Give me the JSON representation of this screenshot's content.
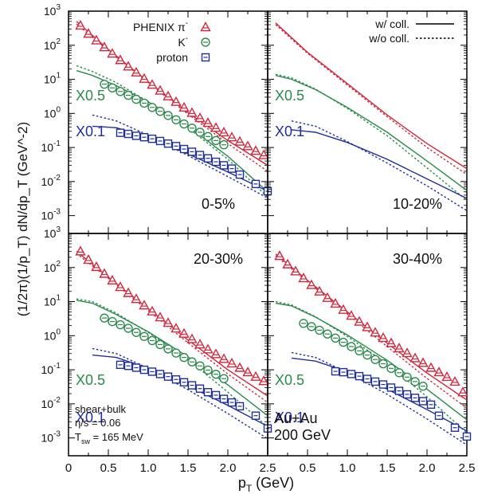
{
  "chart_data": {
    "type": "scatter",
    "title": "",
    "xlabel": "p",
    "xlabel_sub": "T",
    "xlabel_unit": " (GeV)",
    "ylabel": "(1/2π)(1/p_T) dN/dp_T (GeV^-2)",
    "xlim": [
      0,
      2.5
    ],
    "ylim": [
      0.0003,
      1000
    ],
    "log_y": true,
    "xticks": [
      "0",
      "0.5",
      "1.0",
      "1.5",
      "2.0",
      "2.5"
    ],
    "yticks": [
      {
        "value": 1000,
        "mantissa": "10",
        "exp": "3"
      },
      {
        "value": 100,
        "mantissa": "10",
        "exp": "2"
      },
      {
        "value": 10,
        "mantissa": "10",
        "exp": "1"
      },
      {
        "value": 1,
        "mantissa": "10",
        "exp": "0"
      },
      {
        "value": 0.1,
        "mantissa": "10",
        "exp": "-1"
      },
      {
        "value": 0.01,
        "mantissa": "10",
        "exp": "-2"
      },
      {
        "value": 0.001,
        "mantissa": "10",
        "exp": "-3"
      }
    ],
    "legend_points": [
      {
        "label": "PHENIX  π",
        "sup": "-",
        "species": "pion",
        "color": "#d0283c"
      },
      {
        "label": "K",
        "sup": "-",
        "species": "kaon",
        "color": "#2a8a4a"
      },
      {
        "label": "proton",
        "sup": "",
        "species": "proton",
        "color": "#1f2f9a"
      }
    ],
    "legend_lines": [
      {
        "label": "w/ coll.",
        "style": "solid"
      },
      {
        "label": "w/o coll.",
        "style": "dotted"
      }
    ],
    "scale_labels": {
      "kaon": "X0.5",
      "proton": "X0.1"
    },
    "annotations": {
      "params": [
        "shear+bulk",
        "η/s = 0.06"
      ],
      "tsw": {
        "main": "T",
        "sub": "sw",
        "rest": " = 165 MeV"
      },
      "system": [
        "Au+Au",
        "200 GeV"
      ]
    },
    "panels": [
      {
        "centrality": "0-5%",
        "has_data": true,
        "data": {
          "pion": {
            "x": [
              0.15,
              0.25,
              0.35,
              0.45,
              0.55,
              0.65,
              0.75,
              0.85,
              0.95,
              1.05,
              1.15,
              1.25,
              1.35,
              1.45,
              1.55,
              1.65,
              1.75,
              1.85,
              1.95,
              2.05,
              2.15,
              2.25,
              2.35,
              2.45
            ],
            "y": [
              380,
              220,
              140,
              88,
              57,
              37,
              24,
              16,
              10.5,
              7,
              4.7,
              3.2,
              2.2,
              1.5,
              1.05,
              0.74,
              0.53,
              0.38,
              0.28,
              0.2,
              0.15,
              0.11,
              0.08,
              0.06
            ]
          },
          "kaon": {
            "x": [
              0.45,
              0.55,
              0.65,
              0.75,
              0.85,
              0.95,
              1.05,
              1.15,
              1.25,
              1.35,
              1.45,
              1.55,
              1.65,
              1.75,
              1.85,
              1.95
            ],
            "y": [
              7.2,
              5.6,
              4.4,
              3.4,
              2.6,
              2.0,
              1.5,
              1.15,
              0.87,
              0.65,
              0.49,
              0.37,
              0.28,
              0.21,
              0.16,
              0.12
            ]
          },
          "proton": {
            "x": [
              0.65,
              0.75,
              0.85,
              0.95,
              1.05,
              1.15,
              1.25,
              1.35,
              1.45,
              1.55,
              1.65,
              1.75,
              1.85,
              1.95,
              2.05,
              2.15,
              2.35,
              2.5
            ],
            "y": [
              0.27,
              0.25,
              0.22,
              0.2,
              0.18,
              0.155,
              0.13,
              0.11,
              0.09,
              0.075,
              0.06,
              0.048,
              0.038,
              0.03,
              0.024,
              0.016,
              0.0085,
              0.0052
            ]
          }
        },
        "curves": {
          "pion": {
            "x": [
              0.1,
              0.5,
              1.0,
              1.5,
              2.0,
              2.5
            ],
            "solid": [
              500,
              75,
              8.5,
              1.05,
              0.16,
              0.03
            ],
            "dotted": [
              420,
              70,
              8,
              0.95,
              0.13,
              0.02
            ]
          },
          "kaon": {
            "x": [
              0.1,
              0.3,
              0.6,
              1.0,
              1.5,
              2.0,
              2.5
            ],
            "solid": [
              18,
              13,
              6.5,
              2.2,
              0.42,
              0.055,
              0.005
            ],
            "dotted": [
              25,
              17,
              8,
              2.2,
              0.38,
              0.045,
              0.0035
            ]
          },
          "proton": {
            "x": [
              0.3,
              0.6,
              1.0,
              1.5,
              2.0,
              2.5
            ],
            "solid": [
              0.42,
              0.38,
              0.2,
              0.065,
              0.019,
              0.0052
            ],
            "dotted": [
              0.9,
              0.6,
              0.23,
              0.058,
              0.014,
              0.0033
            ]
          }
        }
      },
      {
        "centrality": "10-20%",
        "has_data": false,
        "data": {},
        "curves": {
          "pion": {
            "x": [
              0.1,
              0.5,
              1.0,
              1.5,
              2.0,
              2.5
            ],
            "solid": [
              450,
              62,
              7.5,
              0.9,
              0.13,
              0.024
            ],
            "dotted": [
              400,
              58,
              6.8,
              0.8,
              0.1,
              0.016
            ]
          },
          "kaon": {
            "x": [
              0.1,
              0.3,
              0.6,
              1.0,
              1.5,
              2.0,
              2.5
            ],
            "solid": [
              13,
              10,
              5,
              1.5,
              0.28,
              0.04,
              0.0055
            ],
            "dotted": [
              14,
              11,
              5.2,
              1.4,
              0.22,
              0.025,
              0.0028
            ]
          },
          "proton": {
            "x": [
              0.3,
              0.6,
              1.0,
              1.5,
              2.0,
              2.5
            ],
            "solid": [
              0.33,
              0.28,
              0.14,
              0.045,
              0.012,
              0.0032
            ],
            "dotted": [
              0.6,
              0.42,
              0.15,
              0.035,
              0.0075,
              0.0014
            ]
          }
        }
      },
      {
        "centrality": "20-30%",
        "has_data": true,
        "data": {
          "pion": {
            "x": [
              0.15,
              0.25,
              0.35,
              0.45,
              0.55,
              0.65,
              0.75,
              0.85,
              0.95,
              1.05,
              1.15,
              1.25,
              1.35,
              1.45,
              1.55,
              1.65,
              1.75,
              1.85,
              1.95,
              2.05,
              2.15,
              2.25,
              2.35,
              2.45
            ],
            "y": [
              300,
              170,
              105,
              66,
              42,
              27,
              18,
              12,
              7.8,
              5.2,
              3.5,
              2.4,
              1.65,
              1.15,
              0.8,
              0.56,
              0.4,
              0.29,
              0.21,
              0.155,
              0.115,
              0.085,
              0.063,
              0.047
            ]
          },
          "kaon": {
            "x": [
              0.45,
              0.55,
              0.65,
              0.75,
              0.85,
              0.95,
              1.05,
              1.15,
              1.25,
              1.35,
              1.45,
              1.55,
              1.65,
              1.75,
              1.85,
              1.95
            ],
            "y": [
              3.3,
              2.6,
              2.1,
              1.65,
              1.25,
              0.95,
              0.72,
              0.55,
              0.41,
              0.31,
              0.23,
              0.17,
              0.13,
              0.098,
              0.074,
              0.055
            ]
          },
          "proton": {
            "x": [
              0.65,
              0.75,
              0.85,
              0.95,
              1.05,
              1.15,
              1.25,
              1.35,
              1.45,
              1.55,
              1.65,
              1.75,
              1.85,
              1.95,
              2.05,
              2.15,
              2.35,
              2.5
            ],
            "y": [
              0.14,
              0.13,
              0.115,
              0.1,
              0.088,
              0.075,
              0.063,
              0.052,
              0.043,
              0.035,
              0.028,
              0.022,
              0.018,
              0.014,
              0.011,
              0.0085,
              0.0045,
              0.0019
            ]
          }
        },
        "curves": {
          "pion": {
            "x": [
              0.1,
              0.5,
              1.0,
              1.5,
              2.0,
              2.5
            ],
            "solid": [
              300,
              52,
              6.2,
              0.75,
              0.1,
              0.017
            ],
            "dotted": [
              260,
              48,
              5.5,
              0.62,
              0.075,
              0.011
            ]
          },
          "kaon": {
            "x": [
              0.1,
              0.3,
              0.6,
              1.0,
              1.5,
              2.0,
              2.5
            ],
            "solid": [
              11,
              9,
              4.2,
              1.3,
              0.24,
              0.036,
              0.0045
            ],
            "dotted": [
              12,
              10,
              4.6,
              1.25,
              0.2,
              0.022,
              0.0021
            ]
          },
          "proton": {
            "x": [
              0.3,
              0.6,
              1.0,
              1.5,
              2.0,
              2.5
            ],
            "solid": [
              0.27,
              0.23,
              0.11,
              0.034,
              0.009,
              0.0022
            ],
            "dotted": [
              0.42,
              0.3,
              0.11,
              0.026,
              0.0052,
              0.00095
            ]
          }
        }
      },
      {
        "centrality": "30-40%",
        "has_data": true,
        "data": {
          "pion": {
            "x": [
              0.15,
              0.25,
              0.35,
              0.45,
              0.55,
              0.65,
              0.75,
              0.85,
              0.95,
              1.05,
              1.15,
              1.25,
              1.35,
              1.45,
              1.55,
              1.65,
              1.75,
              1.85,
              1.95,
              2.05,
              2.15,
              2.25,
              2.35,
              2.45
            ],
            "y": [
              220,
              125,
              78,
              49,
              31,
              20,
              13,
              8.8,
              5.8,
              3.9,
              2.6,
              1.8,
              1.25,
              0.87,
              0.61,
              0.43,
              0.31,
              0.22,
              0.16,
              0.115,
              0.085,
              0.062,
              0.045,
              0.022
            ]
          },
          "kaon": {
            "x": [
              0.45,
              0.55,
              0.65,
              0.75,
              0.85,
              0.95,
              1.05,
              1.15,
              1.25,
              1.35,
              1.45,
              1.55,
              1.65,
              1.75,
              1.85,
              1.95
            ],
            "y": [
              2.3,
              1.85,
              1.45,
              1.12,
              0.85,
              0.64,
              0.48,
              0.36,
              0.27,
              0.2,
              0.15,
              0.11,
              0.082,
              0.061,
              0.045,
              0.033
            ]
          },
          "proton": {
            "x": [
              0.85,
              0.95,
              1.05,
              1.15,
              1.25,
              1.35,
              1.45,
              1.55,
              1.65,
              1.75,
              1.85,
              1.95,
              2.05,
              2.15,
              2.35,
              2.5
            ],
            "y": [
              0.09,
              0.085,
              0.075,
              0.065,
              0.054,
              0.045,
              0.037,
              0.03,
              0.024,
              0.019,
              0.015,
              0.012,
              0.0095,
              0.0045,
              0.002,
              0.0011
            ]
          }
        },
        "curves": {
          "pion": {
            "x": [
              0.1,
              0.5,
              1.0,
              1.5,
              2.0,
              2.5
            ],
            "solid": [
              250,
              42,
              5,
              0.6,
              0.08,
              0.013
            ],
            "dotted": [
              220,
              38,
              4.3,
              0.48,
              0.056,
              0.0075
            ]
          },
          "kaon": {
            "x": [
              0.1,
              0.3,
              0.6,
              1.0,
              1.5,
              2.0,
              2.5
            ],
            "solid": [
              9,
              7.5,
              3.5,
              1.05,
              0.19,
              0.027,
              0.0034
            ],
            "dotted": [
              10,
              8,
              3.6,
              0.95,
              0.15,
              0.016,
              0.0014
            ]
          },
          "proton": {
            "x": [
              0.3,
              0.6,
              1.0,
              1.5,
              2.0,
              2.5
            ],
            "solid": [
              0.22,
              0.18,
              0.088,
              0.027,
              0.0068,
              0.0016
            ],
            "dotted": [
              0.32,
              0.23,
              0.083,
              0.019,
              0.0036,
              0.00062
            ]
          }
        }
      }
    ]
  }
}
